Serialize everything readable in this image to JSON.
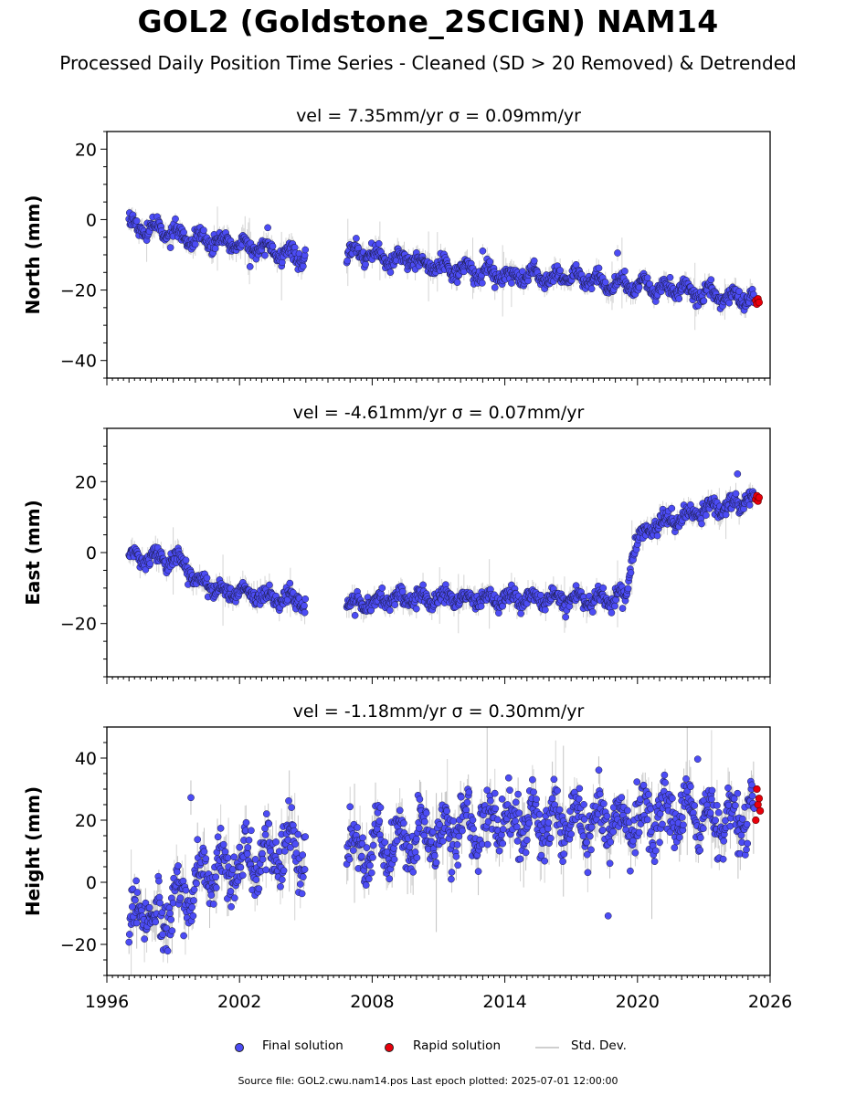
{
  "title": "GOL2 (Goldstone_2SCIGN) NAM14",
  "subtitle": "Processed Daily Position Time Series - Cleaned (SD > 20 Removed) & Detrended",
  "footer": "Source file: GOL2.cwu.nam14.pos  Last epoch plotted: 2025-07-01 12:00:00",
  "legend": {
    "final": "Final solution",
    "rapid": "Rapid solution",
    "std": "Std. Dev."
  },
  "colors": {
    "final": "#4c4cf5",
    "final_edge": "#1a1a40",
    "rapid": "#e8000b",
    "std": "#cfcfcf",
    "std_dark": "#555555"
  },
  "chart_data": [
    {
      "type": "scatter",
      "title": "vel = 7.35mm/yr   σ = 0.09mm/yr",
      "ylabel": "North (mm)",
      "xlim": [
        1996,
        2026
      ],
      "ylim": [
        -45,
        25
      ],
      "yticks": [
        20,
        0,
        -20,
        -40
      ],
      "ytick_labels": [
        "20",
        "0",
        "−20",
        "−40"
      ],
      "series": [
        {
          "name": "Final solution",
          "x": [
            1997.0,
            1997.5,
            1998.0,
            1998.5,
            1999.0,
            1999.5,
            2000.0,
            2000.5,
            2001.0,
            2001.5,
            2002.0,
            2002.5,
            2003.0,
            2003.5,
            2004.0,
            2004.5,
            2004.9,
            2006.9,
            2007.5,
            2008.0,
            2008.5,
            2009.0,
            2009.5,
            2010.0,
            2010.5,
            2011.0,
            2011.5,
            2012.0,
            2012.5,
            2013.0,
            2013.5,
            2014.0,
            2014.5,
            2015.0,
            2015.5,
            2016.0,
            2016.5,
            2017.0,
            2017.5,
            2018.0,
            2018.5,
            2019.0,
            2019.5,
            2020.0,
            2020.5,
            2021.0,
            2021.5,
            2022.0,
            2022.5,
            2023.0,
            2023.5,
            2024.0,
            2024.5,
            2025.0,
            2025.3
          ],
          "y": [
            -1,
            -3,
            -2,
            -4,
            -3,
            -5,
            -5,
            -6,
            -6,
            -7,
            -7,
            -8,
            -8,
            -9,
            -9,
            -10,
            -11,
            -9,
            -10,
            -10,
            -11,
            -11,
            -11,
            -12,
            -13,
            -13,
            -14,
            -14,
            -15,
            -15,
            -15,
            -16,
            -16,
            -16,
            -16,
            -17,
            -16,
            -16,
            -17,
            -17,
            -18,
            -18,
            -18,
            -19,
            -19,
            -20,
            -20,
            -20,
            -21,
            -21,
            -21,
            -22,
            -22,
            -23,
            -23
          ]
        },
        {
          "name": "Rapid solution",
          "x": [
            2025.35,
            2025.4,
            2025.45,
            2025.5
          ],
          "y": [
            -23,
            -24,
            -22.5,
            -23.5
          ]
        }
      ]
    },
    {
      "type": "scatter",
      "title": "vel = -4.61mm/yr   σ = 0.07mm/yr",
      "ylabel": "East (mm)",
      "xlim": [
        1996,
        2026
      ],
      "ylim": [
        -35,
        35
      ],
      "yticks": [
        20,
        0,
        -20
      ],
      "ytick_labels": [
        "20",
        "0",
        "−20"
      ],
      "series": [
        {
          "name": "Final solution",
          "x": [
            1997.0,
            1997.5,
            1998.0,
            1998.5,
            1999.0,
            1999.5,
            2000.0,
            2000.5,
            2001.0,
            2001.5,
            2002.0,
            2002.5,
            2003.0,
            2003.5,
            2004.0,
            2004.5,
            2004.9,
            2006.9,
            2007.5,
            2008.0,
            2009.0,
            2010.0,
            2011.0,
            2012.0,
            2013.0,
            2014.0,
            2015.0,
            2016.0,
            2017.0,
            2018.0,
            2019.0,
            2019.5,
            2019.7,
            2019.9,
            2020.1,
            2020.4,
            2020.7,
            2021.0,
            2021.5,
            2022.0,
            2022.5,
            2023.0,
            2023.5,
            2024.0,
            2024.5,
            2025.0,
            2025.3
          ],
          "y": [
            -1,
            -2,
            -1,
            -2,
            -2,
            -3,
            -8,
            -9,
            -10,
            -11,
            -11,
            -12,
            -12,
            -13,
            -13,
            -13,
            -14,
            -14,
            -14,
            -14,
            -13,
            -13,
            -13,
            -13,
            -13,
            -13,
            -13,
            -13,
            -13,
            -13,
            -13,
            -12,
            -2,
            2,
            4,
            6,
            7,
            8,
            9,
            10,
            11,
            12,
            13,
            13,
            14,
            15,
            15
          ]
        },
        {
          "name": "Rapid solution",
          "x": [
            2025.35,
            2025.4,
            2025.45,
            2025.5
          ],
          "y": [
            15,
            16,
            14.5,
            15.5
          ]
        }
      ]
    },
    {
      "type": "scatter",
      "title": "vel = -1.18mm/yr   σ = 0.30mm/yr",
      "ylabel": "Height (mm)",
      "xlim": [
        1996,
        2026
      ],
      "ylim": [
        -30,
        50
      ],
      "yticks": [
        40,
        20,
        0,
        -20
      ],
      "ytick_labels": [
        "40",
        "20",
        "0",
        "−20"
      ],
      "xticks": [
        1996,
        2002,
        2008,
        2014,
        2020,
        2026
      ],
      "xtick_labels": [
        "1996",
        "2002",
        "2008",
        "2014",
        "2020",
        "2026"
      ],
      "series": [
        {
          "name": "Final solution",
          "x": [
            1997.0,
            1997.5,
            1998.0,
            1998.5,
            1999.0,
            1999.5,
            2000.0,
            2000.5,
            2001.0,
            2001.5,
            2002.0,
            2002.5,
            2003.0,
            2003.5,
            2004.0,
            2004.5,
            2004.9,
            2006.9,
            2007.5,
            2008.0,
            2008.5,
            2009.0,
            2010.0,
            2011.0,
            2012.0,
            2013.0,
            2014.0,
            2015.0,
            2016.0,
            2017.0,
            2018.0,
            2019.0,
            2020.0,
            2021.0,
            2022.0,
            2023.0,
            2024.0,
            2025.0,
            2025.3
          ],
          "y": [
            -15,
            -10,
            -10,
            -12,
            -5,
            -5,
            0,
            2,
            5,
            3,
            6,
            8,
            8,
            10,
            10,
            12,
            10,
            12,
            10,
            12,
            12,
            14,
            15,
            16,
            18,
            18,
            20,
            20,
            20,
            20,
            19,
            20,
            20,
            21,
            21,
            21,
            21,
            21,
            22
          ]
        },
        {
          "name": "Rapid solution",
          "x": [
            2025.35,
            2025.4,
            2025.45,
            2025.5,
            2025.55
          ],
          "y": [
            20,
            30,
            25,
            27,
            23
          ]
        }
      ]
    }
  ]
}
